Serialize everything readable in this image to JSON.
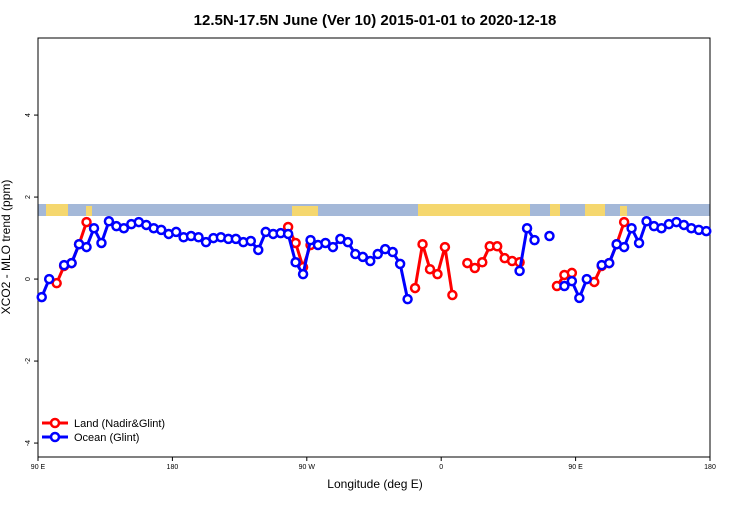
{
  "chart_data": {
    "type": "line",
    "title": "12.5N-17.5N June (Ver 10)   2015-01-01 to 2020-12-18",
    "x_label": "Longitude (deg E)",
    "y_label": "XCO2 - MLO trend (ppm)",
    "x": [
      92.5,
      97.5,
      102.5,
      107.5,
      112.5,
      117.5,
      122.5,
      127.5,
      132.5,
      137.5,
      142.5,
      147.5,
      152.5,
      157.5,
      162.5,
      167.5,
      172.5,
      177.5,
      182.5,
      187.5,
      192.5,
      197.5,
      202.5,
      207.5,
      212.5,
      217.5,
      222.5,
      227.5,
      232.5,
      237.5,
      242.5,
      247.5,
      252.5,
      257.5,
      262.5,
      267.5,
      272.5,
      277.5,
      282.5,
      287.5,
      292.5,
      297.5,
      302.5,
      307.5,
      312.5,
      317.5,
      322.5,
      327.5,
      332.5,
      337.5,
      342.5,
      347.5,
      352.5,
      357.5,
      362.5,
      367.5,
      372.5,
      377.5,
      382.5,
      387.5,
      392.5,
      397.5,
      402.5,
      407.5,
      412.5,
      417.5,
      422.5,
      427.5,
      432.5,
      437.5,
      442.5,
      447.5,
      452.5,
      457.5,
      462.5,
      467.5,
      472.5,
      477.5,
      482.5,
      487.5,
      492.5,
      497.5,
      502.5,
      507.5,
      512.5,
      517.5,
      522.5,
      527.5,
      532.5,
      537.5
    ],
    "series": [
      {
        "name": "Land (Nadir&Glint)",
        "color": "#ff0000",
        "values": [
          null,
          null,
          -0.1,
          0.32,
          0.39,
          0.85,
          1.39,
          null,
          null,
          null,
          null,
          null,
          null,
          null,
          null,
          null,
          null,
          null,
          null,
          null,
          null,
          null,
          null,
          null,
          null,
          null,
          null,
          null,
          null,
          null,
          null,
          null,
          null,
          1.27,
          0.88,
          0.29,
          0.83,
          null,
          null,
          null,
          null,
          null,
          null,
          null,
          null,
          null,
          null,
          null,
          null,
          null,
          -0.22,
          0.85,
          0.24,
          0.12,
          0.78,
          -0.39,
          null,
          0.39,
          0.27,
          0.41,
          0.8,
          0.8,
          0.51,
          0.44,
          0.41,
          null,
          null,
          null,
          null,
          -0.17,
          0.1,
          0.15,
          null,
          null,
          -0.07,
          0.32,
          0.39,
          0.85,
          1.39,
          null,
          null,
          null,
          null,
          null,
          null,
          null,
          null,
          null,
          null,
          null
        ]
      },
      {
        "name": "Ocean (Glint)",
        "color": "#0000ff",
        "values": [
          -0.44,
          0.0,
          null,
          0.34,
          0.39,
          0.85,
          0.78,
          1.24,
          0.88,
          1.41,
          1.29,
          1.24,
          1.34,
          1.39,
          1.32,
          1.24,
          1.2,
          1.1,
          1.15,
          1.02,
          1.05,
          1.02,
          0.9,
          1.0,
          1.02,
          0.98,
          0.98,
          0.9,
          0.93,
          0.71,
          1.15,
          1.1,
          1.12,
          1.1,
          0.41,
          0.12,
          0.95,
          0.83,
          0.88,
          0.78,
          0.98,
          0.9,
          0.61,
          0.54,
          0.44,
          0.61,
          0.73,
          0.66,
          0.37,
          -0.49,
          null,
          null,
          null,
          null,
          null,
          null,
          null,
          null,
          null,
          null,
          null,
          null,
          null,
          null,
          0.2,
          1.24,
          0.95,
          null,
          1.05,
          null,
          -0.17,
          -0.05,
          -0.46,
          0.0,
          null,
          0.34,
          0.39,
          0.85,
          0.78,
          1.24,
          0.88,
          1.41,
          1.29,
          1.24,
          1.34,
          1.39,
          1.32,
          1.24,
          1.2,
          1.17
        ]
      }
    ],
    "xlim": [
      90,
      540
    ],
    "xticks": [
      {
        "value": 90,
        "label": "90 E"
      },
      180,
      {
        "value": 270,
        "label": "90 W"
      },
      {
        "value": 360,
        "label": "0"
      },
      {
        "value": 450,
        "label": "90 E"
      },
      {
        "value": 540,
        "label": "180"
      }
    ],
    "ylim": [
      -4.34,
      5.88
    ],
    "yticks": [
      -4,
      -2,
      0,
      2,
      4
    ],
    "legend": "bottom-left"
  }
}
